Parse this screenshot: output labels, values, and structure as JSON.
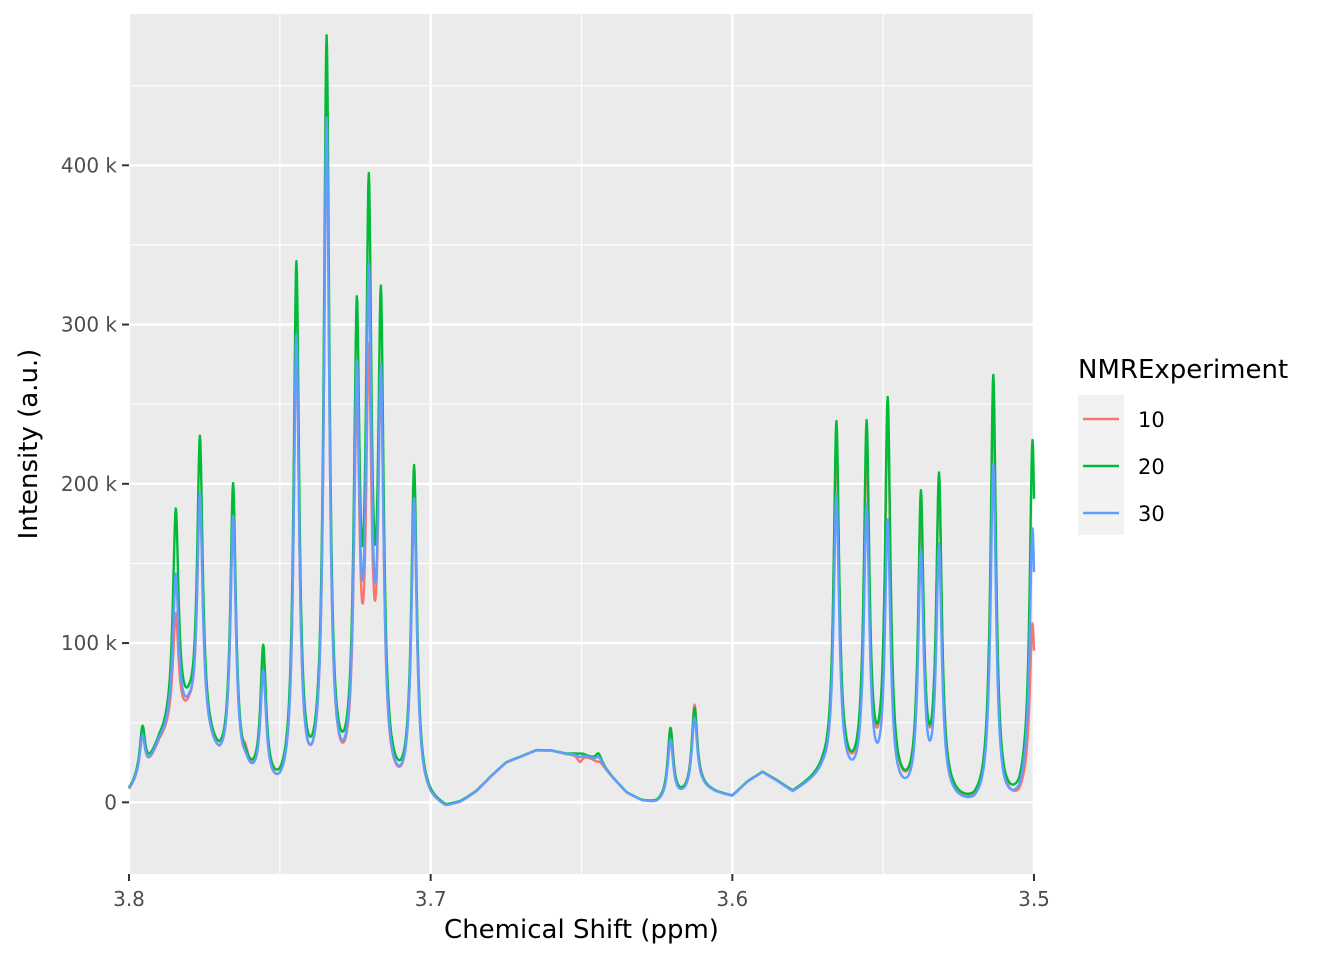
{
  "chart_data": {
    "type": "line",
    "title": "",
    "xlabel": "Chemical Shift (ppm)",
    "ylabel": "Intensity (a.u.)",
    "x_reversed": true,
    "xlim": [
      3.8,
      3.5
    ],
    "ylim": [
      -45000,
      495000
    ],
    "x_ticks": [
      {
        "value": 3.8,
        "label": "3.8"
      },
      {
        "value": 3.7,
        "label": "3.7"
      },
      {
        "value": 3.6,
        "label": "3.6"
      },
      {
        "value": 3.5,
        "label": "3.5"
      }
    ],
    "y_ticks": [
      {
        "value": 0,
        "label": "0"
      },
      {
        "value": 100000,
        "label": "100 k"
      },
      {
        "value": 200000,
        "label": "200 k"
      },
      {
        "value": 300000,
        "label": "300 k"
      },
      {
        "value": 400000,
        "label": "400 k"
      }
    ],
    "grid": true,
    "panel_background": "#ebebeb",
    "legend": {
      "title": "NMRExperiment",
      "position": "right",
      "entries": [
        {
          "label": "10",
          "color": "#F8766D"
        },
        {
          "label": "20",
          "color": "#00BA38"
        },
        {
          "label": "30",
          "color": "#619CFF"
        }
      ]
    },
    "baseline": [
      [
        3.8,
        5000
      ],
      [
        3.795,
        15000
      ],
      [
        3.79,
        35000
      ],
      [
        3.785,
        45000
      ],
      [
        3.78,
        50000
      ],
      [
        3.775,
        35000
      ],
      [
        3.77,
        20000
      ],
      [
        3.765,
        15000
      ],
      [
        3.76,
        10000
      ],
      [
        3.755,
        5000
      ],
      [
        3.75,
        0
      ],
      [
        3.745,
        0
      ],
      [
        3.74,
        0
      ],
      [
        3.735,
        0
      ],
      [
        3.73,
        0
      ],
      [
        3.72,
        0
      ],
      [
        3.71,
        0
      ],
      [
        3.705,
        3000
      ],
      [
        3.7,
        -3000
      ],
      [
        3.695,
        -6000
      ],
      [
        3.69,
        -2000
      ],
      [
        3.685,
        5000
      ],
      [
        3.68,
        15000
      ],
      [
        3.675,
        24000
      ],
      [
        3.67,
        28000
      ],
      [
        3.665,
        32000
      ],
      [
        3.66,
        32000
      ],
      [
        3.655,
        30000
      ],
      [
        3.65,
        30000
      ],
      [
        3.645,
        26000
      ],
      [
        3.64,
        15000
      ],
      [
        3.635,
        5000
      ],
      [
        3.63,
        0
      ],
      [
        3.625,
        -2000
      ],
      [
        3.62,
        0
      ],
      [
        3.615,
        3000
      ],
      [
        3.61,
        8000
      ],
      [
        3.605,
        5000
      ],
      [
        3.6,
        3000
      ],
      [
        3.595,
        12000
      ],
      [
        3.59,
        18000
      ],
      [
        3.585,
        12000
      ],
      [
        3.58,
        5000
      ],
      [
        3.575,
        10000
      ],
      [
        3.57,
        15000
      ],
      [
        3.565,
        12000
      ],
      [
        3.56,
        8000
      ],
      [
        3.555,
        5000
      ],
      [
        3.55,
        3000
      ],
      [
        3.545,
        0
      ],
      [
        3.54,
        -2000
      ],
      [
        3.535,
        0
      ],
      [
        3.53,
        0
      ],
      [
        3.525,
        -3000
      ],
      [
        3.52,
        -5000
      ],
      [
        3.515,
        -3000
      ],
      [
        3.51,
        -5000
      ],
      [
        3.505,
        -3000
      ],
      [
        3.5,
        10000
      ]
    ],
    "series": [
      {
        "name": "10",
        "color": "#F8766D",
        "peaks": [
          [
            3.7955,
            40000
          ],
          [
            3.7845,
            115000
          ],
          [
            3.7765,
            190000
          ],
          [
            3.7655,
            175000
          ],
          [
            3.7615,
            20000
          ],
          [
            3.7555,
            80000
          ],
          [
            3.7445,
            285000
          ],
          [
            3.7345,
            420000
          ],
          [
            3.7245,
            230000
          ],
          [
            3.7205,
            250000
          ],
          [
            3.7165,
            245000
          ],
          [
            3.7055,
            185000
          ],
          [
            3.6505,
            25000
          ],
          [
            3.6445,
            25000
          ],
          [
            3.6205,
            45000
          ],
          [
            3.6125,
            60000
          ],
          [
            3.5655,
            225000
          ],
          [
            3.5555,
            215000
          ],
          [
            3.5485,
            235000
          ],
          [
            3.5375,
            175000
          ],
          [
            3.5315,
            195000
          ],
          [
            3.5135,
            250000
          ],
          [
            3.5005,
            110000
          ]
        ]
      },
      {
        "name": "20",
        "color": "#00BA38",
        "peaks": [
          [
            3.7955,
            45000
          ],
          [
            3.7845,
            180000
          ],
          [
            3.7765,
            225000
          ],
          [
            3.7655,
            195000
          ],
          [
            3.7615,
            15000
          ],
          [
            3.7555,
            90000
          ],
          [
            3.7445,
            330000
          ],
          [
            3.7345,
            470000
          ],
          [
            3.7245,
            280000
          ],
          [
            3.7205,
            350000
          ],
          [
            3.7165,
            290000
          ],
          [
            3.7055,
            205000
          ],
          [
            3.6505,
            30000
          ],
          [
            3.6445,
            30000
          ],
          [
            3.6205,
            45000
          ],
          [
            3.6125,
            58000
          ],
          [
            3.5655,
            235000
          ],
          [
            3.5555,
            230000
          ],
          [
            3.5485,
            245000
          ],
          [
            3.5375,
            185000
          ],
          [
            3.5315,
            198000
          ],
          [
            3.5135,
            265000
          ],
          [
            3.5005,
            225000
          ]
        ]
      },
      {
        "name": "30",
        "color": "#619CFF",
        "peaks": [
          [
            3.7955,
            40000
          ],
          [
            3.7845,
            140000
          ],
          [
            3.7765,
            190000
          ],
          [
            3.7655,
            175000
          ],
          [
            3.7615,
            15000
          ],
          [
            3.7555,
            75000
          ],
          [
            3.7445,
            285000
          ],
          [
            3.7345,
            420000
          ],
          [
            3.7245,
            245000
          ],
          [
            3.7205,
            300000
          ],
          [
            3.7165,
            245000
          ],
          [
            3.7055,
            185000
          ],
          [
            3.6505,
            28000
          ],
          [
            3.6445,
            28000
          ],
          [
            3.6205,
            38000
          ],
          [
            3.6125,
            52000
          ],
          [
            3.5655,
            190000
          ],
          [
            3.5555,
            180000
          ],
          [
            3.5485,
            170000
          ],
          [
            3.5375,
            150000
          ],
          [
            3.5315,
            155000
          ],
          [
            3.5135,
            210000
          ],
          [
            3.5005,
            170000
          ]
        ]
      }
    ]
  }
}
